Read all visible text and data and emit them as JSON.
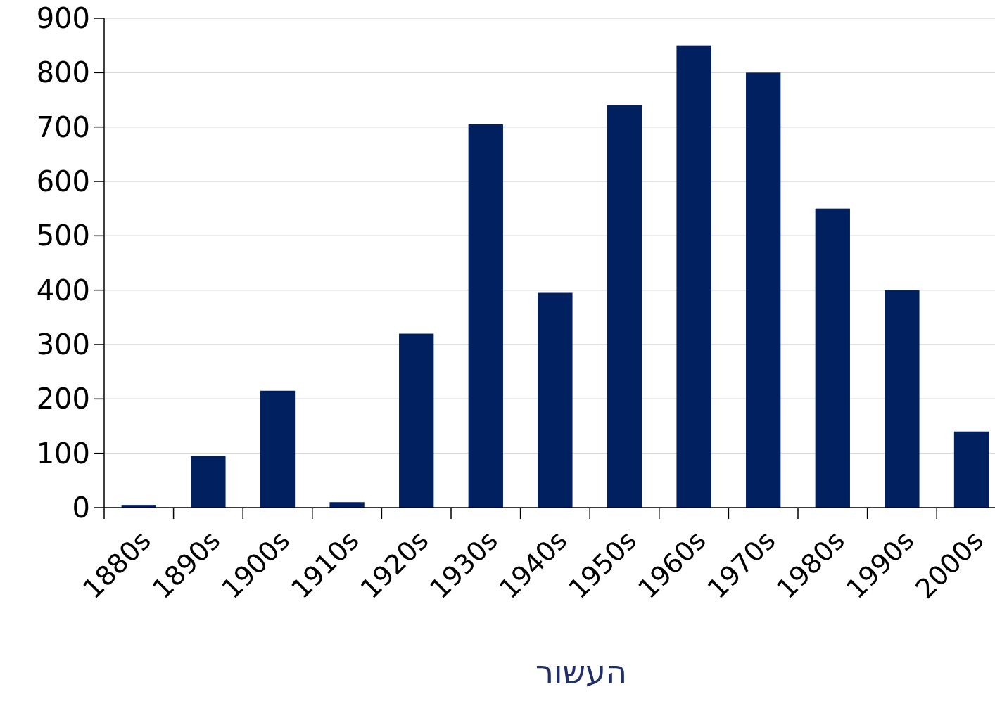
{
  "chart_data": {
    "type": "bar",
    "xlabel": "העשור",
    "categories": [
      "1880s",
      "1890s",
      "1900s",
      "1910s",
      "1920s",
      "1930s",
      "1940s",
      "1950s",
      "1960s",
      "1970s",
      "1980s",
      "1990s",
      "2000s"
    ],
    "values": [
      5,
      95,
      215,
      10,
      320,
      705,
      395,
      740,
      850,
      800,
      550,
      400,
      140
    ],
    "color": "#002060",
    "ylim": [
      0,
      900
    ],
    "yticks": [
      0,
      100,
      200,
      300,
      400,
      500,
      600,
      700,
      800,
      900
    ],
    "grid": "y"
  }
}
